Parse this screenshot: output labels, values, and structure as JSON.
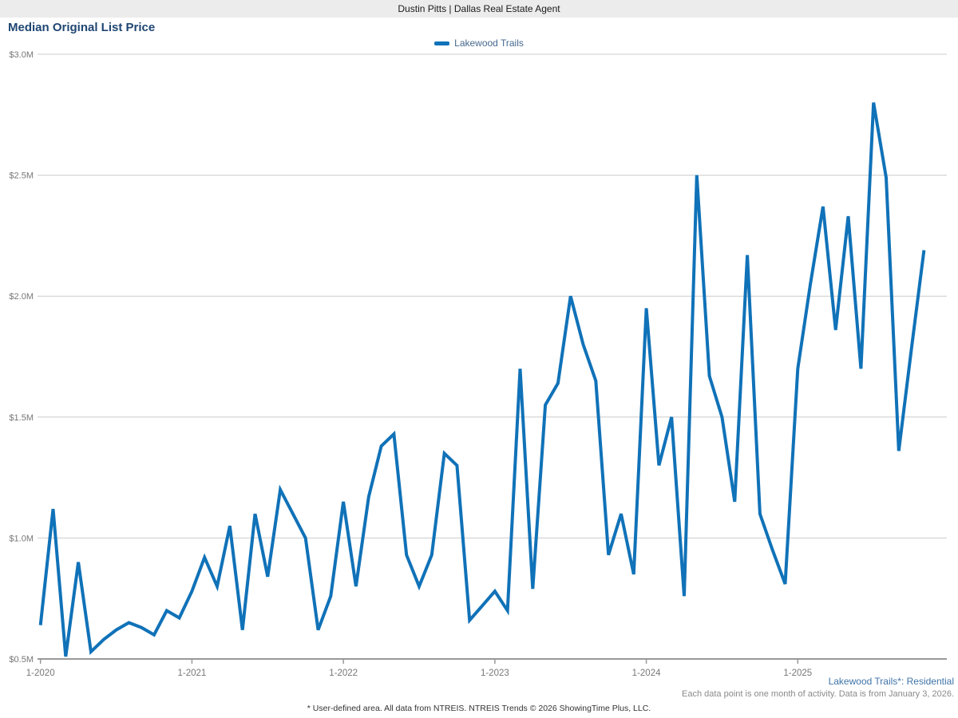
{
  "topbar": {
    "title": "Dustin Pitts | Dallas Real Estate Agent"
  },
  "page": {
    "title": "Median Original List Price"
  },
  "legend": {
    "label": "Lakewood Trails"
  },
  "footer": {
    "series_link": "Lakewood Trails*: Residential",
    "note": "Each data point is one month of activity. Data is from January 3, 2026.",
    "disclaimer": "* User-defined area. All data from NTREIS. NTREIS Trends © 2026 ShowingTime Plus, LLC."
  },
  "colors": {
    "line": "#1072b8",
    "title": "#1f4672",
    "legend_text": "#45688e",
    "link": "#3f74a8",
    "axis": "#999999",
    "gridline": "#cccccc",
    "tick_label": "#777777"
  },
  "chart_data": {
    "type": "line",
    "title": "Median Original List Price",
    "series_name": "Lakewood Trails",
    "unit": "USD millions",
    "ylim": [
      0.5,
      3.0
    ],
    "grid": "horizontal-only",
    "legend_position": "top-center",
    "y_ticks": [
      0.5,
      1.0,
      1.5,
      2.0,
      2.5,
      3.0
    ],
    "y_tick_labels": [
      "$0.5M",
      "$1.0M",
      "$1.5M",
      "$2.0M",
      "$2.5M",
      "$3.0M"
    ],
    "x_tick_labels": [
      "1-2020",
      "1-2021",
      "1-2022",
      "1-2023",
      "1-2024",
      "1-2025"
    ],
    "x": [
      "1-2020",
      "2-2020",
      "3-2020",
      "4-2020",
      "5-2020",
      "6-2020",
      "7-2020",
      "8-2020",
      "9-2020",
      "10-2020",
      "11-2020",
      "12-2020",
      "1-2021",
      "2-2021",
      "3-2021",
      "4-2021",
      "5-2021",
      "6-2021",
      "7-2021",
      "8-2021",
      "9-2021",
      "10-2021",
      "11-2021",
      "12-2021",
      "1-2022",
      "2-2022",
      "3-2022",
      "4-2022",
      "5-2022",
      "6-2022",
      "7-2022",
      "8-2022",
      "9-2022",
      "10-2022",
      "11-2022",
      "12-2022",
      "1-2023",
      "2-2023",
      "3-2023",
      "4-2023",
      "5-2023",
      "6-2023",
      "7-2023",
      "8-2023",
      "9-2023",
      "10-2023",
      "11-2023",
      "12-2023",
      "1-2024",
      "2-2024",
      "3-2024",
      "4-2024",
      "5-2024",
      "6-2024",
      "7-2024",
      "8-2024",
      "9-2024",
      "10-2024",
      "11-2024",
      "12-2024",
      "1-2025",
      "2-2025",
      "3-2025",
      "4-2025",
      "5-2025",
      "6-2025",
      "7-2025",
      "8-2025",
      "9-2025",
      "10-2025",
      "11-2025"
    ],
    "values": [
      0.64,
      1.12,
      0.51,
      0.9,
      0.53,
      0.58,
      0.62,
      0.65,
      0.63,
      0.6,
      0.7,
      0.67,
      0.78,
      0.92,
      0.8,
      1.05,
      0.62,
      1.1,
      0.84,
      1.2,
      1.1,
      1.0,
      0.62,
      0.76,
      1.15,
      0.8,
      1.17,
      1.38,
      1.43,
      0.93,
      0.8,
      0.93,
      1.35,
      1.3,
      0.66,
      0.72,
      0.78,
      0.7,
      1.7,
      0.79,
      1.55,
      1.64,
      2.0,
      1.8,
      1.65,
      0.93,
      1.1,
      0.85,
      1.95,
      1.3,
      1.5,
      0.76,
      2.5,
      1.67,
      1.5,
      1.15,
      2.17,
      1.1,
      0.95,
      0.81,
      1.7,
      2.05,
      2.37,
      1.86,
      2.33,
      1.7,
      2.8,
      2.49,
      1.36,
      1.78,
      2.19
    ]
  }
}
